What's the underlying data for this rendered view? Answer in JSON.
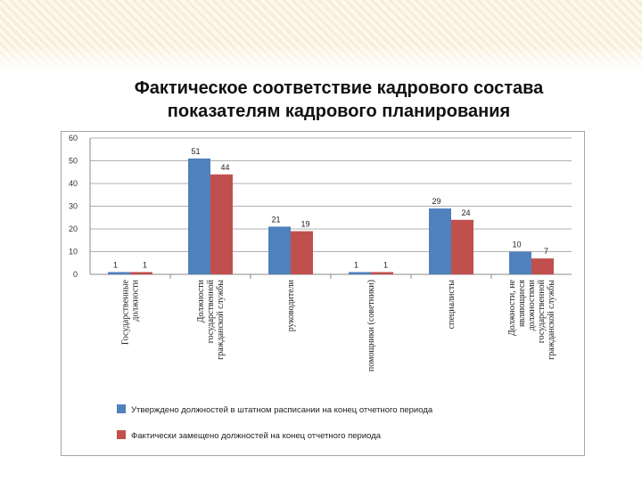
{
  "title": {
    "line1": "Фактическое соответствие кадрового состава",
    "line2": "показателям кадрового планирования"
  },
  "colors": {
    "series1": "#4f81bd",
    "series2": "#c0504d",
    "grid": "#b0b0b0"
  },
  "chart_data": {
    "type": "bar",
    "ylim": [
      0,
      60
    ],
    "yticks": [
      "0",
      "10",
      "20",
      "30",
      "40",
      "50",
      "60"
    ],
    "categories": [
      [
        "Государственные",
        "должности"
      ],
      [
        "Должности",
        "государственной",
        "гражданской службы"
      ],
      [
        "руководители"
      ],
      [
        "помощники (советники)"
      ],
      [
        "специалисты"
      ],
      [
        "Должности, не",
        "являющиеся",
        "должностями",
        "государственной",
        "гражданской службы"
      ]
    ],
    "series": [
      {
        "name": "Утверждено должностей в штатном расписании на конец отчетного периода",
        "values": [
          1,
          51,
          21,
          1,
          29,
          10
        ]
      },
      {
        "name": "Фактически замещено должностей на конец отчетного периода",
        "values": [
          1,
          44,
          19,
          1,
          24,
          7
        ]
      }
    ],
    "legend": "bottom",
    "grid": true
  }
}
